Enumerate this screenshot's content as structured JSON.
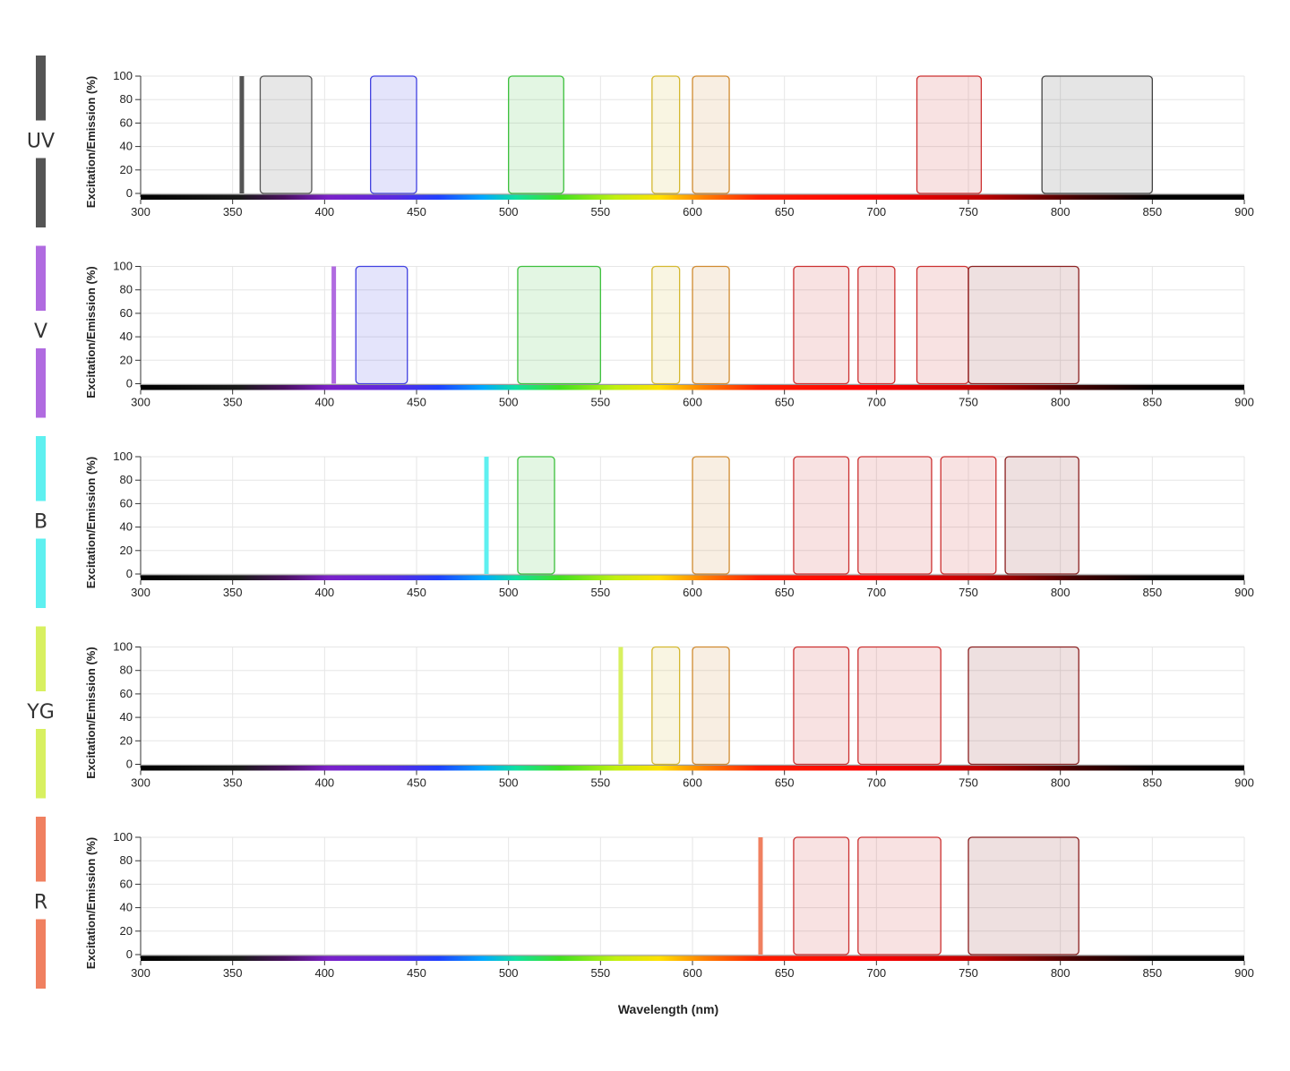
{
  "chart_data": {
    "type": "area",
    "xlabel": "Wavelength (nm)",
    "ylabel": "Excitation/Emission (%)",
    "xlim": [
      300,
      900
    ],
    "ylim": [
      0,
      100
    ],
    "x_ticks": [
      300,
      350,
      400,
      450,
      500,
      550,
      600,
      650,
      700,
      750,
      800,
      850,
      900
    ],
    "y_ticks": [
      0,
      20,
      40,
      60,
      80,
      100
    ],
    "grid": true,
    "panels": [
      {
        "laser": "UV",
        "laser_wavelength": 355,
        "laser_color": "#555555",
        "filters": [
          {
            "start": 365,
            "end": 393,
            "color": "#555555"
          },
          {
            "start": 425,
            "end": 450,
            "color": "#4040e0"
          },
          {
            "start": 500,
            "end": 530,
            "color": "#3cc03c"
          },
          {
            "start": 578,
            "end": 593,
            "color": "#d4b830"
          },
          {
            "start": 600,
            "end": 620,
            "color": "#d08a30"
          },
          {
            "start": 722,
            "end": 757,
            "color": "#cc3030"
          },
          {
            "start": 790,
            "end": 850,
            "color": "#444444"
          }
        ]
      },
      {
        "laser": "V",
        "laser_wavelength": 405,
        "laser_color": "#b06be0",
        "filters": [
          {
            "start": 417,
            "end": 445,
            "color": "#4040e0"
          },
          {
            "start": 505,
            "end": 550,
            "color": "#3cc03c"
          },
          {
            "start": 578,
            "end": 593,
            "color": "#d4b830"
          },
          {
            "start": 600,
            "end": 620,
            "color": "#d08a30"
          },
          {
            "start": 655,
            "end": 685,
            "color": "#cc3030"
          },
          {
            "start": 690,
            "end": 710,
            "color": "#cc3030"
          },
          {
            "start": 722,
            "end": 750,
            "color": "#cc3030"
          },
          {
            "start": 750,
            "end": 810,
            "color": "#8a2020"
          }
        ]
      },
      {
        "laser": "B",
        "laser_wavelength": 488,
        "laser_color": "#5ef0f0",
        "filters": [
          {
            "start": 505,
            "end": 525,
            "color": "#3cc03c"
          },
          {
            "start": 600,
            "end": 620,
            "color": "#d08a30"
          },
          {
            "start": 655,
            "end": 685,
            "color": "#cc3030"
          },
          {
            "start": 690,
            "end": 730,
            "color": "#cc3030"
          },
          {
            "start": 735,
            "end": 765,
            "color": "#cc3030"
          },
          {
            "start": 770,
            "end": 810,
            "color": "#8a2020"
          }
        ]
      },
      {
        "laser": "YG",
        "laser_wavelength": 561,
        "laser_color": "#d8f060",
        "filters": [
          {
            "start": 578,
            "end": 593,
            "color": "#d4b830"
          },
          {
            "start": 600,
            "end": 620,
            "color": "#d08a30"
          },
          {
            "start": 655,
            "end": 685,
            "color": "#cc3030"
          },
          {
            "start": 690,
            "end": 735,
            "color": "#cc3030"
          },
          {
            "start": 750,
            "end": 810,
            "color": "#8a2020"
          }
        ]
      },
      {
        "laser": "R",
        "laser_wavelength": 637,
        "laser_color": "#f08060",
        "filters": [
          {
            "start": 655,
            "end": 685,
            "color": "#cc3030"
          },
          {
            "start": 690,
            "end": 735,
            "color": "#cc3030"
          },
          {
            "start": 750,
            "end": 810,
            "color": "#8a2020"
          }
        ]
      }
    ]
  }
}
